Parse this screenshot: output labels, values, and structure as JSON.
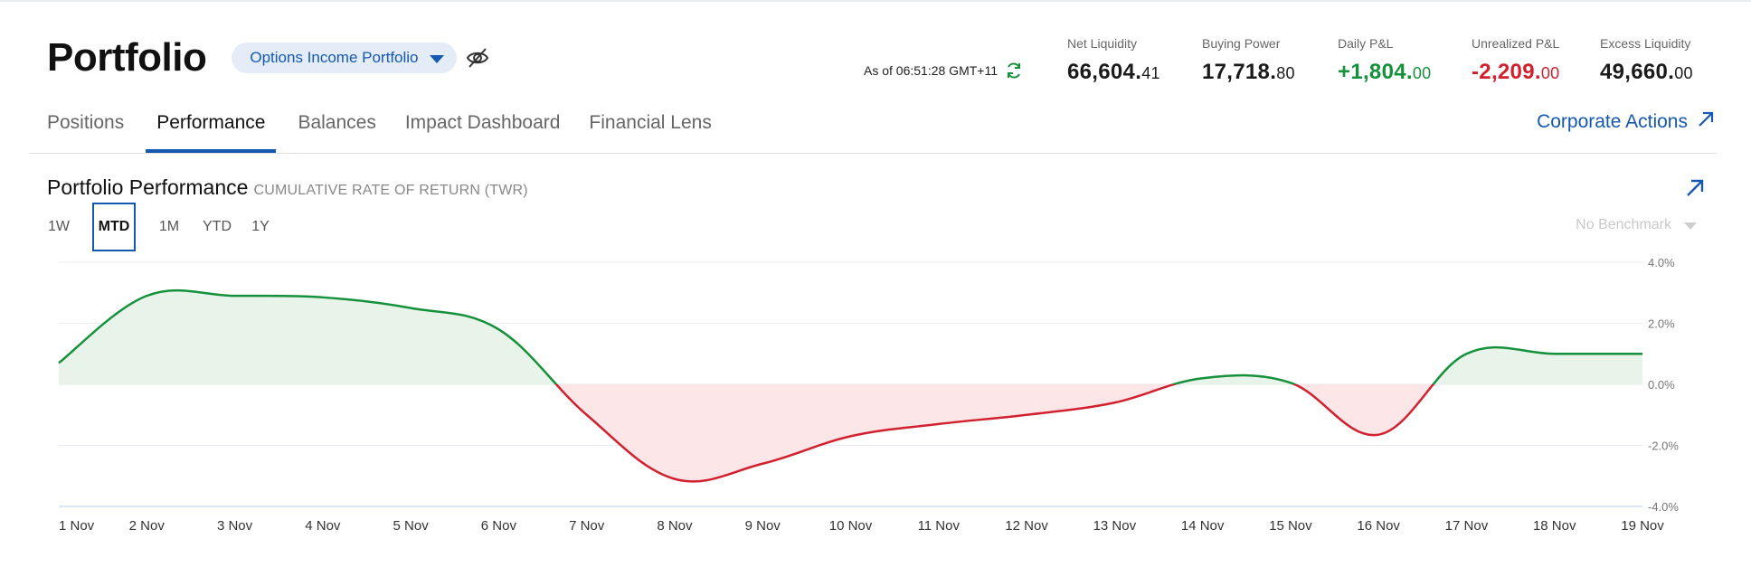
{
  "header": {
    "title": "Portfolio",
    "portfolio_selector": "Options Income Portfolio",
    "as_of": "As of 06:51:28 GMT+11"
  },
  "metrics": [
    {
      "label": "Net Liquidity",
      "whole": "66,604.",
      "cents": "41",
      "tone": "neutral"
    },
    {
      "label": "Buying Power",
      "whole": "17,718.",
      "cents": "80",
      "tone": "neutral"
    },
    {
      "label": "Daily P&L",
      "whole": "+1,804.",
      "cents": "00",
      "tone": "pos"
    },
    {
      "label": "Unrealized P&L",
      "whole": "-2,209.",
      "cents": "00",
      "tone": "neg"
    },
    {
      "label": "Excess Liquidity",
      "whole": "49,660.",
      "cents": "00",
      "tone": "neutral"
    }
  ],
  "tabs": [
    {
      "label": "Positions",
      "active": false
    },
    {
      "label": "Performance",
      "active": true
    },
    {
      "label": "Balances",
      "active": false
    },
    {
      "label": "Impact Dashboard",
      "active": false
    },
    {
      "label": "Financial Lens",
      "active": false
    }
  ],
  "corporate_actions": "Corporate Actions",
  "performance": {
    "title": "Portfolio Performance",
    "subtitle": "CUMULATIVE RATE OF RETURN (TWR)",
    "ranges": [
      {
        "label": "1W",
        "active": false
      },
      {
        "label": "MTD",
        "active": true
      },
      {
        "label": "1M",
        "active": false
      },
      {
        "label": "YTD",
        "active": false
      },
      {
        "label": "1Y",
        "active": false
      }
    ],
    "benchmark": "No Benchmark"
  },
  "colors": {
    "accent": "#1558b0",
    "positive": "#16913b",
    "negative": "#d1202e",
    "positive_fill": "#e8f4ea",
    "negative_fill": "#fce6e7"
  },
  "chart_data": {
    "type": "area",
    "x": [
      "1 Nov",
      "2 Nov",
      "3 Nov",
      "4 Nov",
      "5 Nov",
      "6 Nov",
      "7 Nov",
      "8 Nov",
      "9 Nov",
      "10 Nov",
      "11 Nov",
      "12 Nov",
      "13 Nov",
      "14 Nov",
      "15 Nov",
      "16 Nov",
      "17 Nov",
      "18 Nov",
      "19 Nov"
    ],
    "series": [
      {
        "values": [
          0.7,
          2.9,
          2.9,
          2.85,
          2.5,
          1.8,
          -1.0,
          -3.1,
          -2.6,
          -1.7,
          -1.3,
          -1.0,
          -0.6,
          0.2,
          0.05,
          -1.65,
          1.0,
          1.0,
          1.0
        ]
      }
    ],
    "y_ticks": [
      "4.0%",
      "2.0%",
      "0.0%",
      "-2.0%",
      "-4.0%"
    ],
    "ylim": [
      -4,
      4
    ],
    "grid": true
  }
}
